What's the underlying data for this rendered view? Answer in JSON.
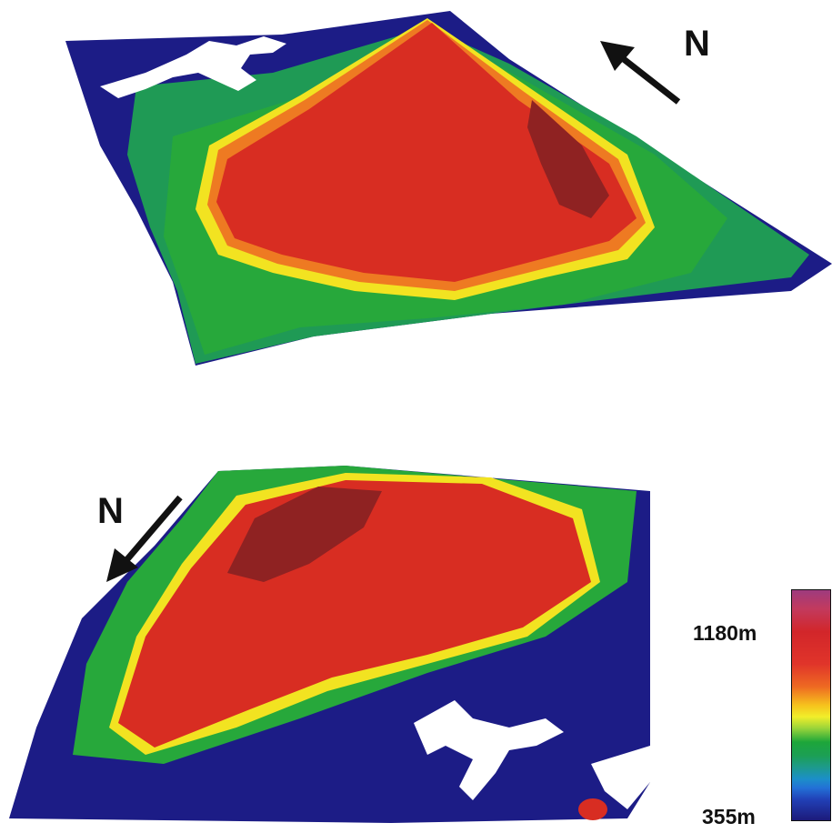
{
  "maps": [
    {
      "name": "upper-terrain-view",
      "north_label": "N"
    },
    {
      "name": "lower-terrain-view",
      "north_label": "N"
    }
  ],
  "legend": {
    "max_label": "1180m",
    "min_label": "355m"
  },
  "colors": {
    "water": "#ffffff",
    "lowland": "#1c1c86",
    "low": "#1f74b8",
    "mid_low": "#23a648",
    "mid": "#f2e321",
    "high": "#d82d22",
    "peak": "#8f2222"
  }
}
